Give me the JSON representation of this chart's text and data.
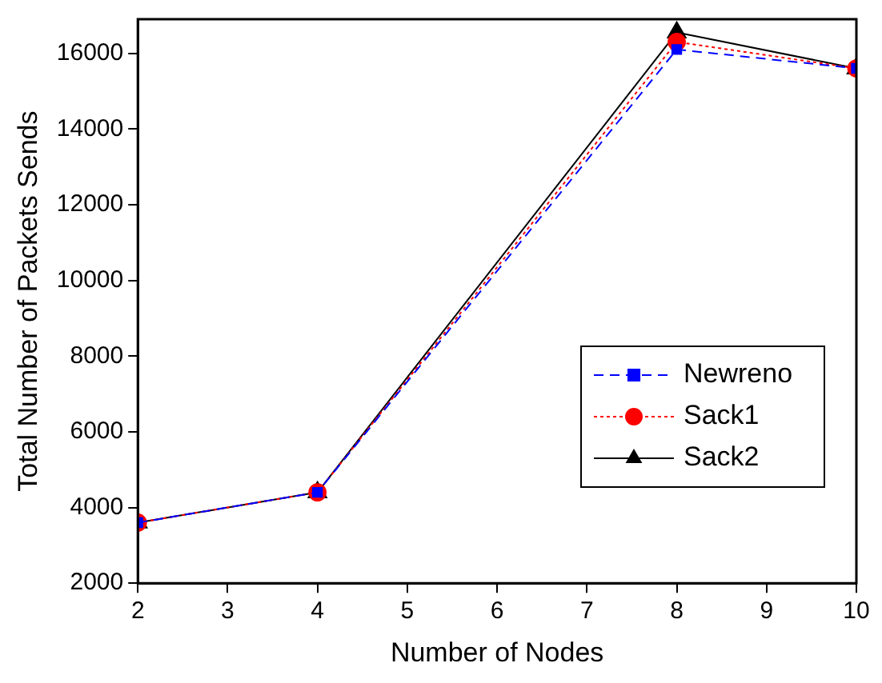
{
  "chart_data": {
    "type": "line",
    "xlabel": "Number of Nodes",
    "ylabel": "Total Number of Packets Sends",
    "x": [
      2,
      4,
      8,
      10
    ],
    "series": [
      {
        "name": "Newreno",
        "color": "#0000ff",
        "values": [
          3600,
          4400,
          16100,
          15600
        ],
        "marker": "square",
        "line_style": "dashed"
      },
      {
        "name": "Sack1",
        "color": "#ff0000",
        "values": [
          3600,
          4400,
          16300,
          15600
        ],
        "marker": "circle",
        "line_style": "dotted"
      },
      {
        "name": "Sack2",
        "color": "#000000",
        "values": [
          3600,
          4400,
          16550,
          15600
        ],
        "marker": "triangle",
        "line_style": "solid"
      }
    ],
    "xlim": [
      2,
      10
    ],
    "xticks": [
      2,
      3,
      4,
      5,
      6,
      7,
      8,
      9,
      10
    ],
    "ylim": [
      2000,
      16900
    ],
    "yticks": [
      2000,
      4000,
      6000,
      8000,
      10000,
      12000,
      14000,
      16000
    ],
    "grid": false,
    "legend": "center right"
  }
}
